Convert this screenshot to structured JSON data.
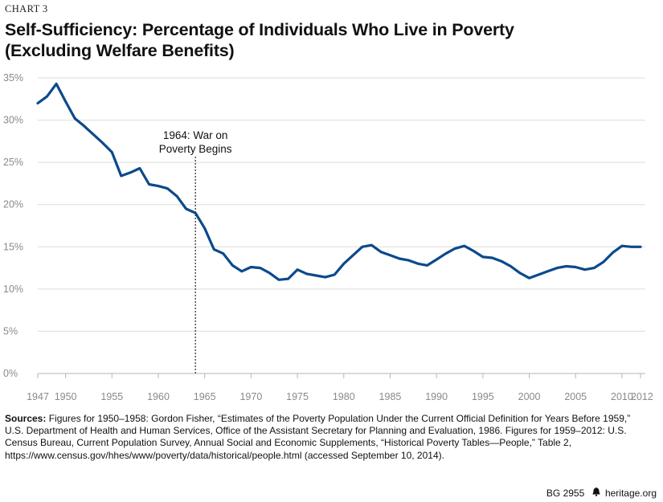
{
  "chart_label": "CHART 3",
  "title_line1": "Self-Sufficiency: Percentage of Individuals Who Live in Poverty",
  "title_line2": "(Excluding Welfare Benefits)",
  "annotation": {
    "line1": "1964: War on",
    "line2": "Poverty Begins",
    "x": 1964
  },
  "chart_data": {
    "type": "line",
    "title": "Self-Sufficiency: Percentage of Individuals Who Live in Poverty (Excluding Welfare Benefits)",
    "xlabel": "",
    "ylabel": "",
    "xlim": [
      1947,
      2012
    ],
    "ylim": [
      0,
      35
    ],
    "grid": true,
    "line_color": "#0b4a8b",
    "x_ticks": [
      1947,
      1950,
      1955,
      1960,
      1965,
      1970,
      1975,
      1980,
      1985,
      1990,
      1995,
      2000,
      2005,
      2010,
      2012
    ],
    "y_ticks": [
      0,
      5,
      10,
      15,
      20,
      25,
      30,
      35
    ],
    "y_tick_labels": [
      "0%",
      "5%",
      "10%",
      "15%",
      "20%",
      "25%",
      "30%",
      "35%"
    ],
    "series": [
      {
        "x": [
          1947,
          1948,
          1949,
          1950,
          1951,
          1952,
          1953,
          1954,
          1955,
          1956,
          1957,
          1958,
          1959,
          1960,
          1961,
          1962,
          1963,
          1964,
          1965,
          1966,
          1967,
          1968,
          1969,
          1970,
          1971,
          1972,
          1973,
          1974,
          1975,
          1976,
          1977,
          1978,
          1979,
          1980,
          1981,
          1982,
          1983,
          1984,
          1985,
          1986,
          1987,
          1988,
          1989,
          1990,
          1991,
          1992,
          1993,
          1994,
          1995,
          1996,
          1997,
          1998,
          1999,
          2000,
          2001,
          2002,
          2003,
          2004,
          2005,
          2006,
          2007,
          2008,
          2009,
          2010,
          2011,
          2012
        ],
        "values": [
          32.0,
          32.8,
          34.3,
          32.2,
          30.2,
          29.3,
          28.3,
          27.3,
          26.2,
          23.4,
          23.8,
          24.3,
          22.4,
          22.2,
          21.9,
          21.0,
          19.5,
          19.0,
          17.2,
          14.7,
          14.2,
          12.8,
          12.1,
          12.6,
          12.5,
          11.9,
          11.1,
          11.2,
          12.3,
          11.8,
          11.6,
          11.4,
          11.7,
          13.0,
          14.0,
          15.0,
          15.2,
          14.4,
          14.0,
          13.6,
          13.4,
          13.0,
          12.8,
          13.5,
          14.2,
          14.8,
          15.1,
          14.5,
          13.8,
          13.7,
          13.3,
          12.7,
          11.9,
          11.3,
          11.7,
          12.1,
          12.5,
          12.7,
          12.6,
          12.3,
          12.5,
          13.2,
          14.3,
          15.1,
          15.0,
          15.0
        ]
      }
    ]
  },
  "sources": {
    "label": "Sources:",
    "text": " Figures for 1950–1958: Gordon Fisher, “Estimates of the Poverty Population Under the Current Official Definition for Years Before 1959,” U.S. Department of Health and Human Services, Office of the Assistant Secretary for Planning and Evaluation, 1986. Figures for 1959–2012: U.S. Census Bureau, Current Population Survey, Annual Social and Economic Supplements, “Historical Poverty Tables—People,” Table 2,",
    "url": "https://www.census.gov/hhes/www/poverty/data/historical/people.html (accessed September 10, 2014)."
  },
  "footer": {
    "code": "BG 2955",
    "bell_icon": "liberty-bell-icon",
    "site": "heritage.org"
  }
}
